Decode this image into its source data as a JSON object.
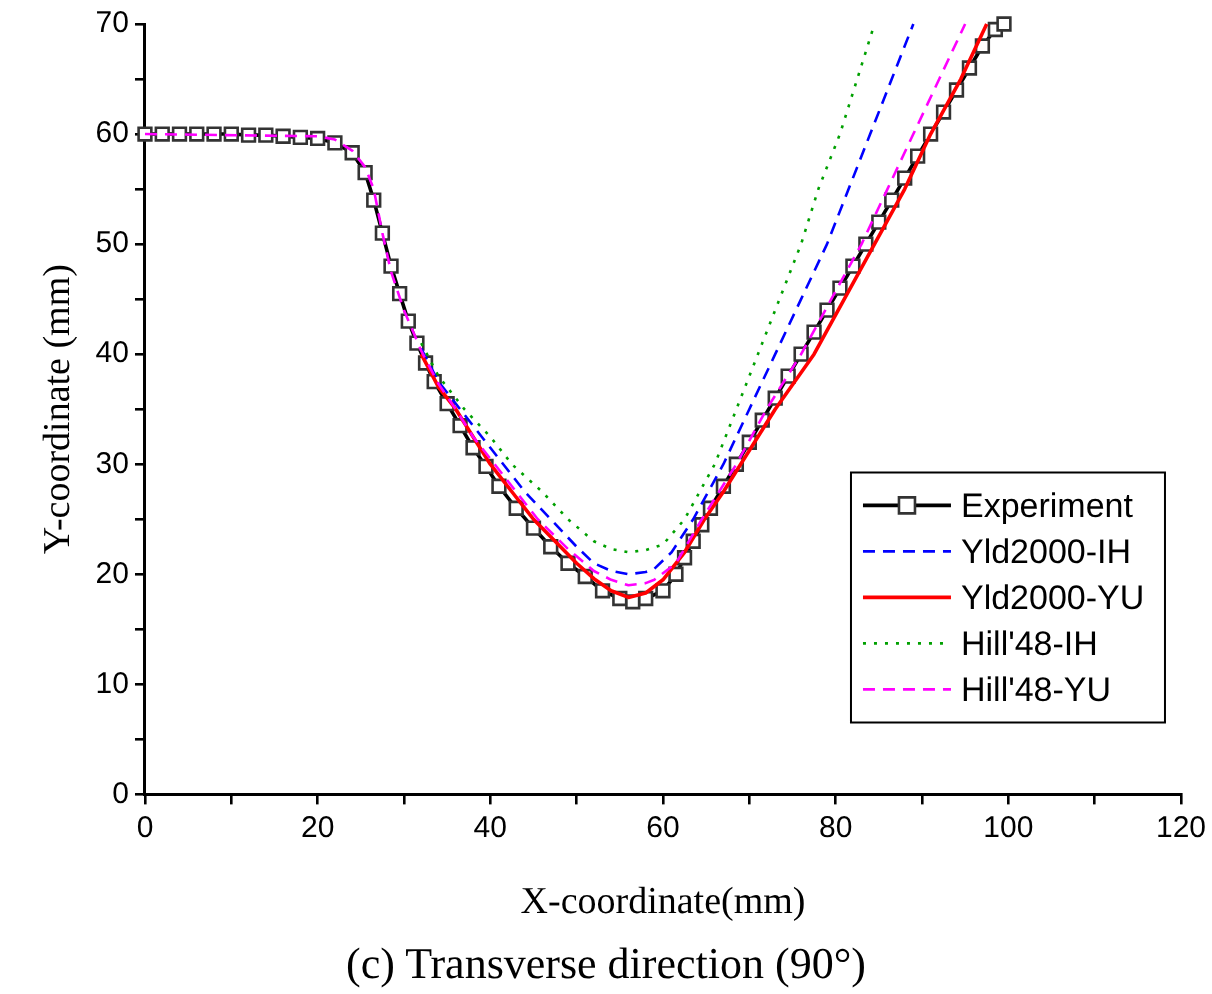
{
  "chart_data": {
    "type": "line",
    "xlabel": "X-coordinate(mm)",
    "ylabel": "Y-coordinate (mm)",
    "annotations": [
      "(c) Transverse direction (90°)"
    ],
    "xlim": [
      0,
      120
    ],
    "ylim": [
      0,
      70
    ],
    "xticks": [
      0,
      {
        "value": 10,
        "label": null
      },
      20,
      {
        "value": 30,
        "label": null
      },
      40,
      {
        "value": 50,
        "label": null
      },
      60,
      {
        "value": 70,
        "label": null
      },
      80,
      {
        "value": 90,
        "label": null
      },
      100,
      {
        "value": 110,
        "label": null
      },
      120
    ],
    "yticks": [
      0,
      {
        "value": 5,
        "label": null
      },
      10,
      {
        "value": 15,
        "label": null
      },
      20,
      {
        "value": 25,
        "label": null
      },
      30,
      {
        "value": 35,
        "label": null
      },
      40,
      {
        "value": 45,
        "label": null
      },
      50,
      {
        "value": 55,
        "label": null
      },
      60,
      {
        "value": 65,
        "label": null
      },
      70
    ],
    "grid": false,
    "legend": "bottom right",
    "series": [
      {
        "name": "Experiment",
        "color": "#000000",
        "marker": "square",
        "line_style": "solid",
        "x": [
          0,
          2,
          4,
          6,
          8,
          10,
          12,
          14,
          16,
          18,
          20,
          22,
          24,
          25.5,
          26.5,
          27.5,
          28.5,
          29.5,
          30.5,
          31.5,
          32.5,
          33.5,
          35,
          36.5,
          38,
          39.5,
          41,
          43,
          45,
          47,
          49,
          51,
          53,
          55,
          56.5,
          58,
          60,
          61.5,
          62.5,
          63.5,
          64.5,
          65.5,
          67,
          68.5,
          70,
          71.5,
          73,
          74.5,
          76,
          77.5,
          79,
          80.5,
          82,
          83.5,
          85,
          86.5,
          88,
          89.5,
          91,
          92.5,
          94,
          95.5,
          97,
          98.5,
          99.5
        ],
        "values": [
          60,
          60,
          60,
          60,
          60,
          60,
          59.9,
          59.9,
          59.8,
          59.7,
          59.6,
          59.2,
          58.3,
          56.5,
          54,
          51,
          48,
          45.5,
          43,
          41,
          39.2,
          37.5,
          35.5,
          33.5,
          31.5,
          29.8,
          28,
          26,
          24.2,
          22.5,
          21,
          19.8,
          18.5,
          17.8,
          17.5,
          17.8,
          18.5,
          20,
          21.5,
          23,
          24.5,
          26,
          28,
          30,
          32,
          34,
          36,
          38,
          40,
          42,
          44,
          46,
          48,
          50,
          52,
          54,
          56,
          58,
          60,
          62,
          64,
          66,
          68,
          69.5,
          70
        ]
      },
      {
        "name": "Yld2000-IH",
        "color": "#0000ff",
        "marker": "none",
        "line_style": "dashed",
        "x": [
          32,
          34,
          36.5,
          39,
          41.5,
          44,
          47,
          50,
          52,
          54,
          56,
          58,
          59,
          61,
          63.5,
          67,
          70,
          73,
          76,
          79,
          81.5,
          84,
          86.5,
          89
        ],
        "values": [
          40.5,
          37.5,
          35,
          32.5,
          30,
          27.5,
          25,
          22.5,
          21,
          20.3,
          20,
          20.2,
          20.5,
          22,
          25,
          30,
          35,
          40,
          45,
          50,
          55,
          60,
          65,
          70
        ]
      },
      {
        "name": "Yld2000-YU",
        "color": "#ff0000",
        "marker": "none",
        "line_style": "solid",
        "x": [
          32,
          34,
          36,
          38,
          40,
          42.5,
          45,
          47.5,
          50,
          52,
          54,
          56,
          58,
          60,
          62.5,
          64.8,
          67,
          69,
          73,
          77.5,
          81,
          84.5,
          88,
          91,
          94.5,
          97.5
        ],
        "values": [
          40,
          37,
          35,
          32.5,
          30,
          27.5,
          25,
          23,
          21,
          19.6,
          18.5,
          17.9,
          18.3,
          19.5,
          22,
          25,
          27.5,
          30,
          35,
          40,
          45,
          50,
          55,
          60,
          65,
          70
        ]
      },
      {
        "name": "Hill'48-IH",
        "color": "#00a000",
        "marker": "none",
        "line_style": "dotted",
        "x": [
          32,
          34,
          37,
          40,
          42.5,
          46,
          49,
          52,
          54,
          56,
          58,
          60,
          62.5,
          66,
          68.5,
          71,
          73.5,
          76,
          78,
          80.5,
          82.5,
          84.5
        ],
        "values": [
          41,
          38,
          35,
          32.5,
          30,
          27.5,
          25,
          23,
          22.3,
          22,
          22.2,
          22.7,
          25,
          30,
          35,
          40,
          45,
          50,
          55,
          60,
          65,
          70
        ]
      },
      {
        "name": "Hill'48-YU",
        "color": "#ff00ff",
        "marker": "none",
        "line_style": "dashed",
        "x": [
          0,
          20,
          22,
          24,
          25.5,
          26.5,
          27.5,
          28.5,
          30,
          32,
          34,
          36,
          38,
          40.5,
          43,
          45.5,
          49,
          52,
          54,
          56,
          58,
          59,
          61.5,
          64.5,
          68.5,
          72,
          76,
          79.5,
          83,
          86,
          89,
          92,
          95
        ],
        "values": [
          60,
          59.8,
          59.5,
          58.5,
          57,
          55,
          51,
          47.5,
          44,
          40.3,
          37.3,
          35,
          32.5,
          30,
          27.5,
          25,
          22.3,
          20.3,
          19.5,
          19,
          19.2,
          19.5,
          21,
          25,
          30,
          35,
          40,
          45,
          50,
          55,
          60,
          65,
          70
        ]
      }
    ]
  }
}
